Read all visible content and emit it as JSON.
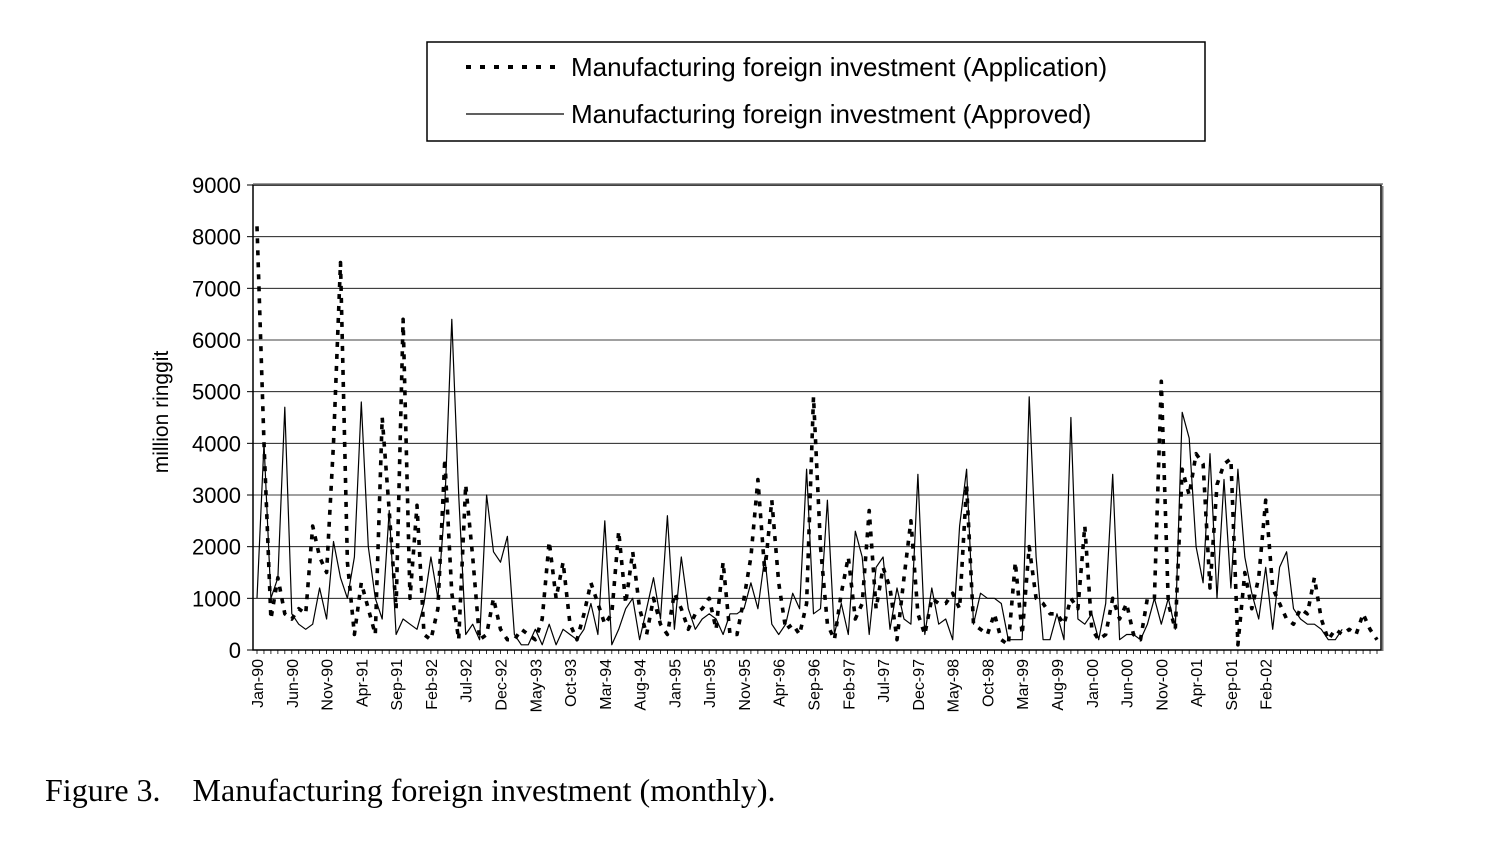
{
  "figure": {
    "caption_label": "Figure 3.",
    "caption_text": "Manufacturing foreign investment (monthly)."
  },
  "chart_data": {
    "type": "line",
    "title": "",
    "xlabel": "",
    "ylabel": "million ringgit",
    "ylim": [
      0,
      9000
    ],
    "y_ticks": [
      0,
      1000,
      2000,
      3000,
      4000,
      5000,
      6000,
      7000,
      8000,
      9000
    ],
    "grid": "horizontal",
    "legend": "top",
    "x_tick_labels": [
      "Jan-90",
      "Jun-90",
      "Nov-90",
      "Apr-91",
      "Sep-91",
      "Feb-92",
      "Jul-92",
      "Dec-92",
      "May-93",
      "Oct-93",
      "Mar-94",
      "Aug-94",
      "Jan-95",
      "Jun-95",
      "Nov-95",
      "Apr-96",
      "Sep-96",
      "Feb-97",
      "Jul-97",
      "Dec-97",
      "May-98",
      "Oct-98",
      "Mar-99",
      "Aug-99",
      "Jan-00",
      "Jun-00",
      "Nov-00",
      "Apr-01",
      "Sep-01",
      "Feb-02"
    ],
    "x_tick_every": 5,
    "series": [
      {
        "name": "Manufacturing foreign investment (Application)",
        "style": "dotted",
        "color": "#000000",
        "values": [
          8200,
          4000,
          600,
          1400,
          700,
          600,
          800,
          700,
          2400,
          1800,
          1500,
          4000,
          7500,
          1700,
          300,
          1300,
          800,
          300,
          4500,
          2700,
          800,
          6400,
          1000,
          2800,
          300,
          200,
          800,
          3700,
          1100,
          200,
          3200,
          1800,
          200,
          300,
          1000,
          400,
          200,
          200,
          400,
          300,
          200,
          600,
          2100,
          1000,
          1700,
          500,
          200,
          700,
          1300,
          900,
          500,
          700,
          2300,
          900,
          1900,
          800,
          300,
          1000,
          500,
          300,
          1100,
          800,
          400,
          700,
          800,
          1000,
          400,
          1700,
          300,
          300,
          1000,
          1800,
          3300,
          1500,
          2900,
          1300,
          400,
          500,
          300,
          900,
          4900,
          2000,
          500,
          200,
          1100,
          1800,
          600,
          900,
          2700,
          800,
          1600,
          1200,
          200,
          1400,
          2500,
          700,
          300,
          1000,
          900,
          900,
          1100,
          800,
          3200,
          500,
          400,
          300,
          700,
          200,
          100,
          1700,
          300,
          2000,
          1000,
          900,
          700,
          700,
          500,
          1000,
          800,
          2400,
          400,
          200,
          300,
          1000,
          600,
          900,
          300,
          200,
          1000,
          1000,
          5200,
          900,
          400,
          3500,
          3000,
          3800,
          3600,
          1200,
          3200,
          3600,
          3700,
          100,
          1500,
          800,
          1400,
          2900,
          1200,
          900,
          600,
          500,
          800,
          700,
          1400,
          600,
          200,
          400,
          300,
          400,
          300,
          700,
          400,
          200
        ]
      },
      {
        "name": "Manufacturing foreign investment (Approved)",
        "style": "solid",
        "color": "#000000",
        "values": [
          1000,
          4000,
          1000,
          1400,
          4700,
          700,
          500,
          400,
          500,
          1200,
          600,
          2100,
          1400,
          1000,
          1800,
          4800,
          2000,
          1000,
          600,
          2700,
          300,
          600,
          500,
          400,
          900,
          1800,
          1000,
          2800,
          6400,
          3000,
          300,
          500,
          200,
          3000,
          1900,
          1700,
          2200,
          300,
          100,
          100,
          400,
          100,
          500,
          100,
          400,
          300,
          200,
          400,
          900,
          300,
          2500,
          100,
          400,
          800,
          1000,
          200,
          800,
          1400,
          600,
          2600,
          400,
          1800,
          800,
          400,
          600,
          700,
          600,
          300,
          700,
          700,
          800,
          1300,
          800,
          1800,
          500,
          300,
          500,
          1100,
          800,
          3500,
          700,
          800,
          2900,
          300,
          900,
          300,
          2300,
          1800,
          300,
          1600,
          1800,
          400,
          1200,
          600,
          500,
          3400,
          300,
          1200,
          500,
          600,
          200,
          2400,
          3500,
          500,
          1100,
          1000,
          1000,
          900,
          200,
          200,
          200,
          4900,
          1800,
          200,
          200,
          700,
          200,
          4500,
          600,
          500,
          700,
          200,
          900,
          3400,
          200,
          300,
          300,
          200,
          500,
          1000,
          500,
          1000,
          400,
          4600,
          4100,
          2000,
          1300,
          3800,
          1000,
          3300,
          1200,
          3500,
          1800,
          1100,
          600,
          1600,
          400,
          1600,
          1900,
          800,
          600,
          500,
          500,
          400,
          200,
          200,
          400
        ],
        "note_on_precision": ""
      }
    ]
  }
}
